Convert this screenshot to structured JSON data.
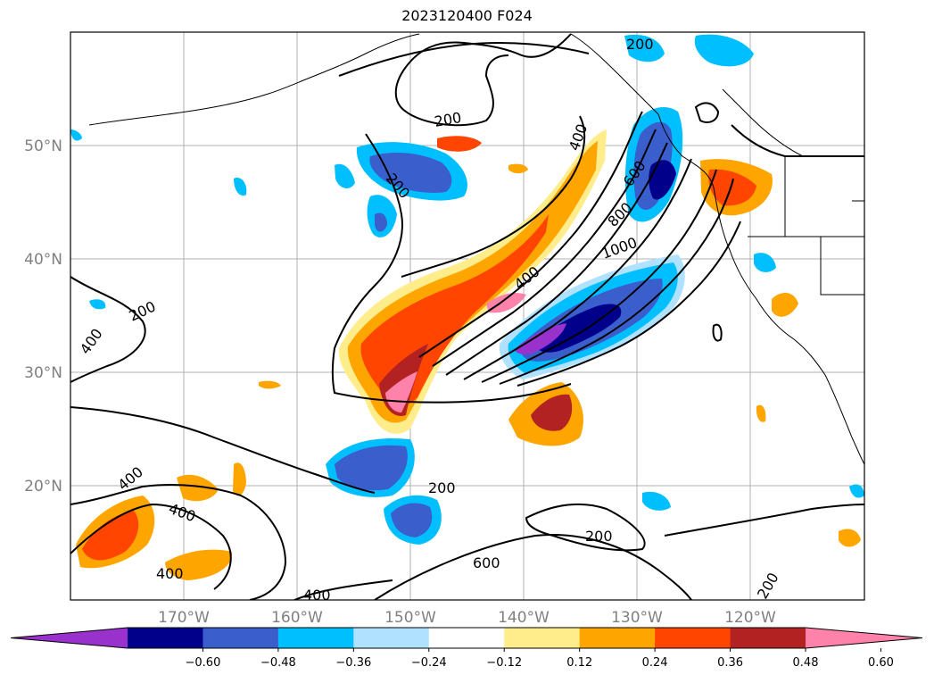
{
  "title": "2023120400 F024",
  "lat_labels": [
    "50°N",
    "40°N",
    "30°N",
    "20°N"
  ],
  "lon_labels": [
    "170°W",
    "160°W",
    "150°W",
    "140°W",
    "130°W",
    "120°W"
  ],
  "contour_labels": [
    "200",
    "200",
    "200",
    "400",
    "600",
    "800",
    "1000",
    "400",
    "200",
    "400",
    "400",
    "400",
    "400",
    "200",
    "200",
    "600",
    "400",
    "200"
  ],
  "colorbar": {
    "colors": [
      "#9932cc",
      "#00008b",
      "#3a5fcd",
      "#00bfff",
      "#b0e2ff",
      "#ffffff",
      "#ffec8b",
      "#ffa500",
      "#ff4500",
      "#b22222",
      "#ff82ab"
    ],
    "labels": [
      "−0.60",
      "−0.48",
      "−0.36",
      "−0.24",
      "−0.12",
      "0.12",
      "0.24",
      "0.36",
      "0.48",
      "0.60"
    ]
  }
}
